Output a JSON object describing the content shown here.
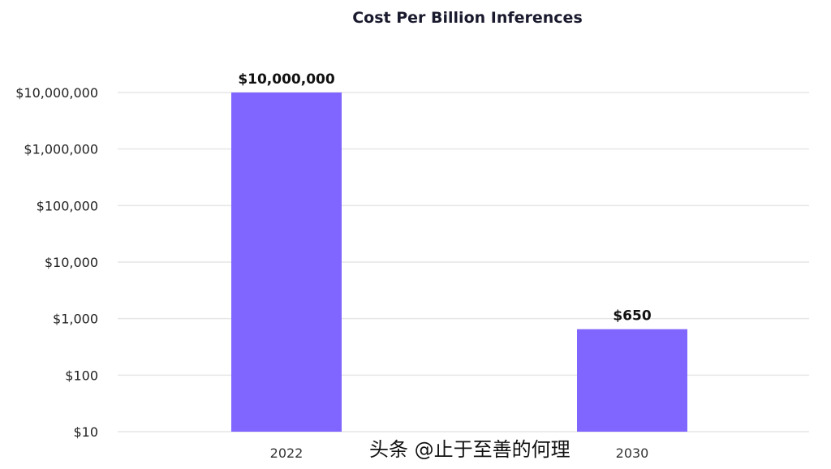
{
  "chart_data": {
    "type": "bar",
    "title": "Cost Per Billion Inferences",
    "categories": [
      "2022",
      "2030"
    ],
    "values": [
      10000000,
      650
    ],
    "data_labels": [
      "$10,000,000",
      "$650"
    ],
    "y_scale": "log",
    "ylim": [
      10,
      10000000
    ],
    "y_ticks": [
      10,
      100,
      1000,
      10000,
      100000,
      1000000,
      10000000
    ],
    "y_tick_labels": [
      "$10",
      "$100",
      "$1,000",
      "$10,000",
      "$100,000",
      "$1,000,000",
      "$10,000,000"
    ],
    "grid": true,
    "xlabel": "",
    "ylabel": "",
    "bar_color": "#8065FF",
    "grid_color": "#e6e6e6"
  },
  "watermark": "头条 @止于至善的何理"
}
